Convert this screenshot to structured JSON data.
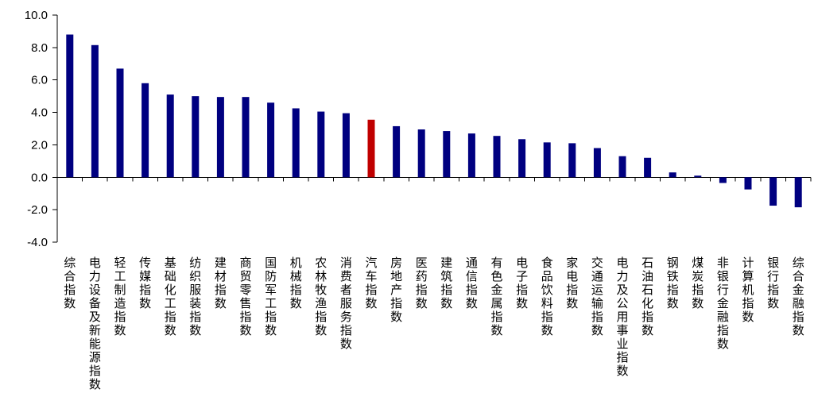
{
  "chart_data": {
    "type": "bar",
    "title": "",
    "xlabel": "",
    "ylabel": "",
    "ylim": [
      -4.0,
      10.0
    ],
    "yticks": [
      10.0,
      8.0,
      6.0,
      4.0,
      2.0,
      0.0,
      -2.0,
      -4.0
    ],
    "ytick_labels": [
      "10.0",
      "8.0",
      "6.0",
      "4.0",
      "2.0",
      "0.0",
      "-2.0",
      "-4.0"
    ],
    "grid": false,
    "legend": "none",
    "colors": {
      "default": "#000080",
      "highlight": "#C00000"
    },
    "highlight_category": "汽车指数",
    "categories": [
      "综合指数",
      "电力设备及新能源指数",
      "轻工制造指数",
      "传媒指数",
      "基础化工指数",
      "纺织服装指数",
      "建材指数",
      "商贸零售指数",
      "国防军工指数",
      "机械指数",
      "农林牧渔指数",
      "消费者服务指数",
      "汽车指数",
      "房地产指数",
      "医药指数",
      "建筑指数",
      "通信指数",
      "有色金属指数",
      "电子指数",
      "食品饮料指数",
      "家电指数",
      "交通运输指数",
      "电力及公用事业指数",
      "石油石化指数",
      "钢铁指数",
      "煤炭指数",
      "非银行金融指数",
      "计算机指数",
      "银行指数",
      "综合金融指数"
    ],
    "values": [
      8.8,
      8.15,
      6.7,
      5.8,
      5.1,
      5.0,
      4.95,
      4.95,
      4.6,
      4.25,
      4.05,
      3.95,
      3.55,
      3.15,
      2.95,
      2.85,
      2.7,
      2.55,
      2.35,
      2.15,
      2.1,
      1.8,
      1.3,
      1.2,
      0.3,
      0.1,
      -0.35,
      -0.75,
      -1.75,
      -1.85
    ]
  }
}
